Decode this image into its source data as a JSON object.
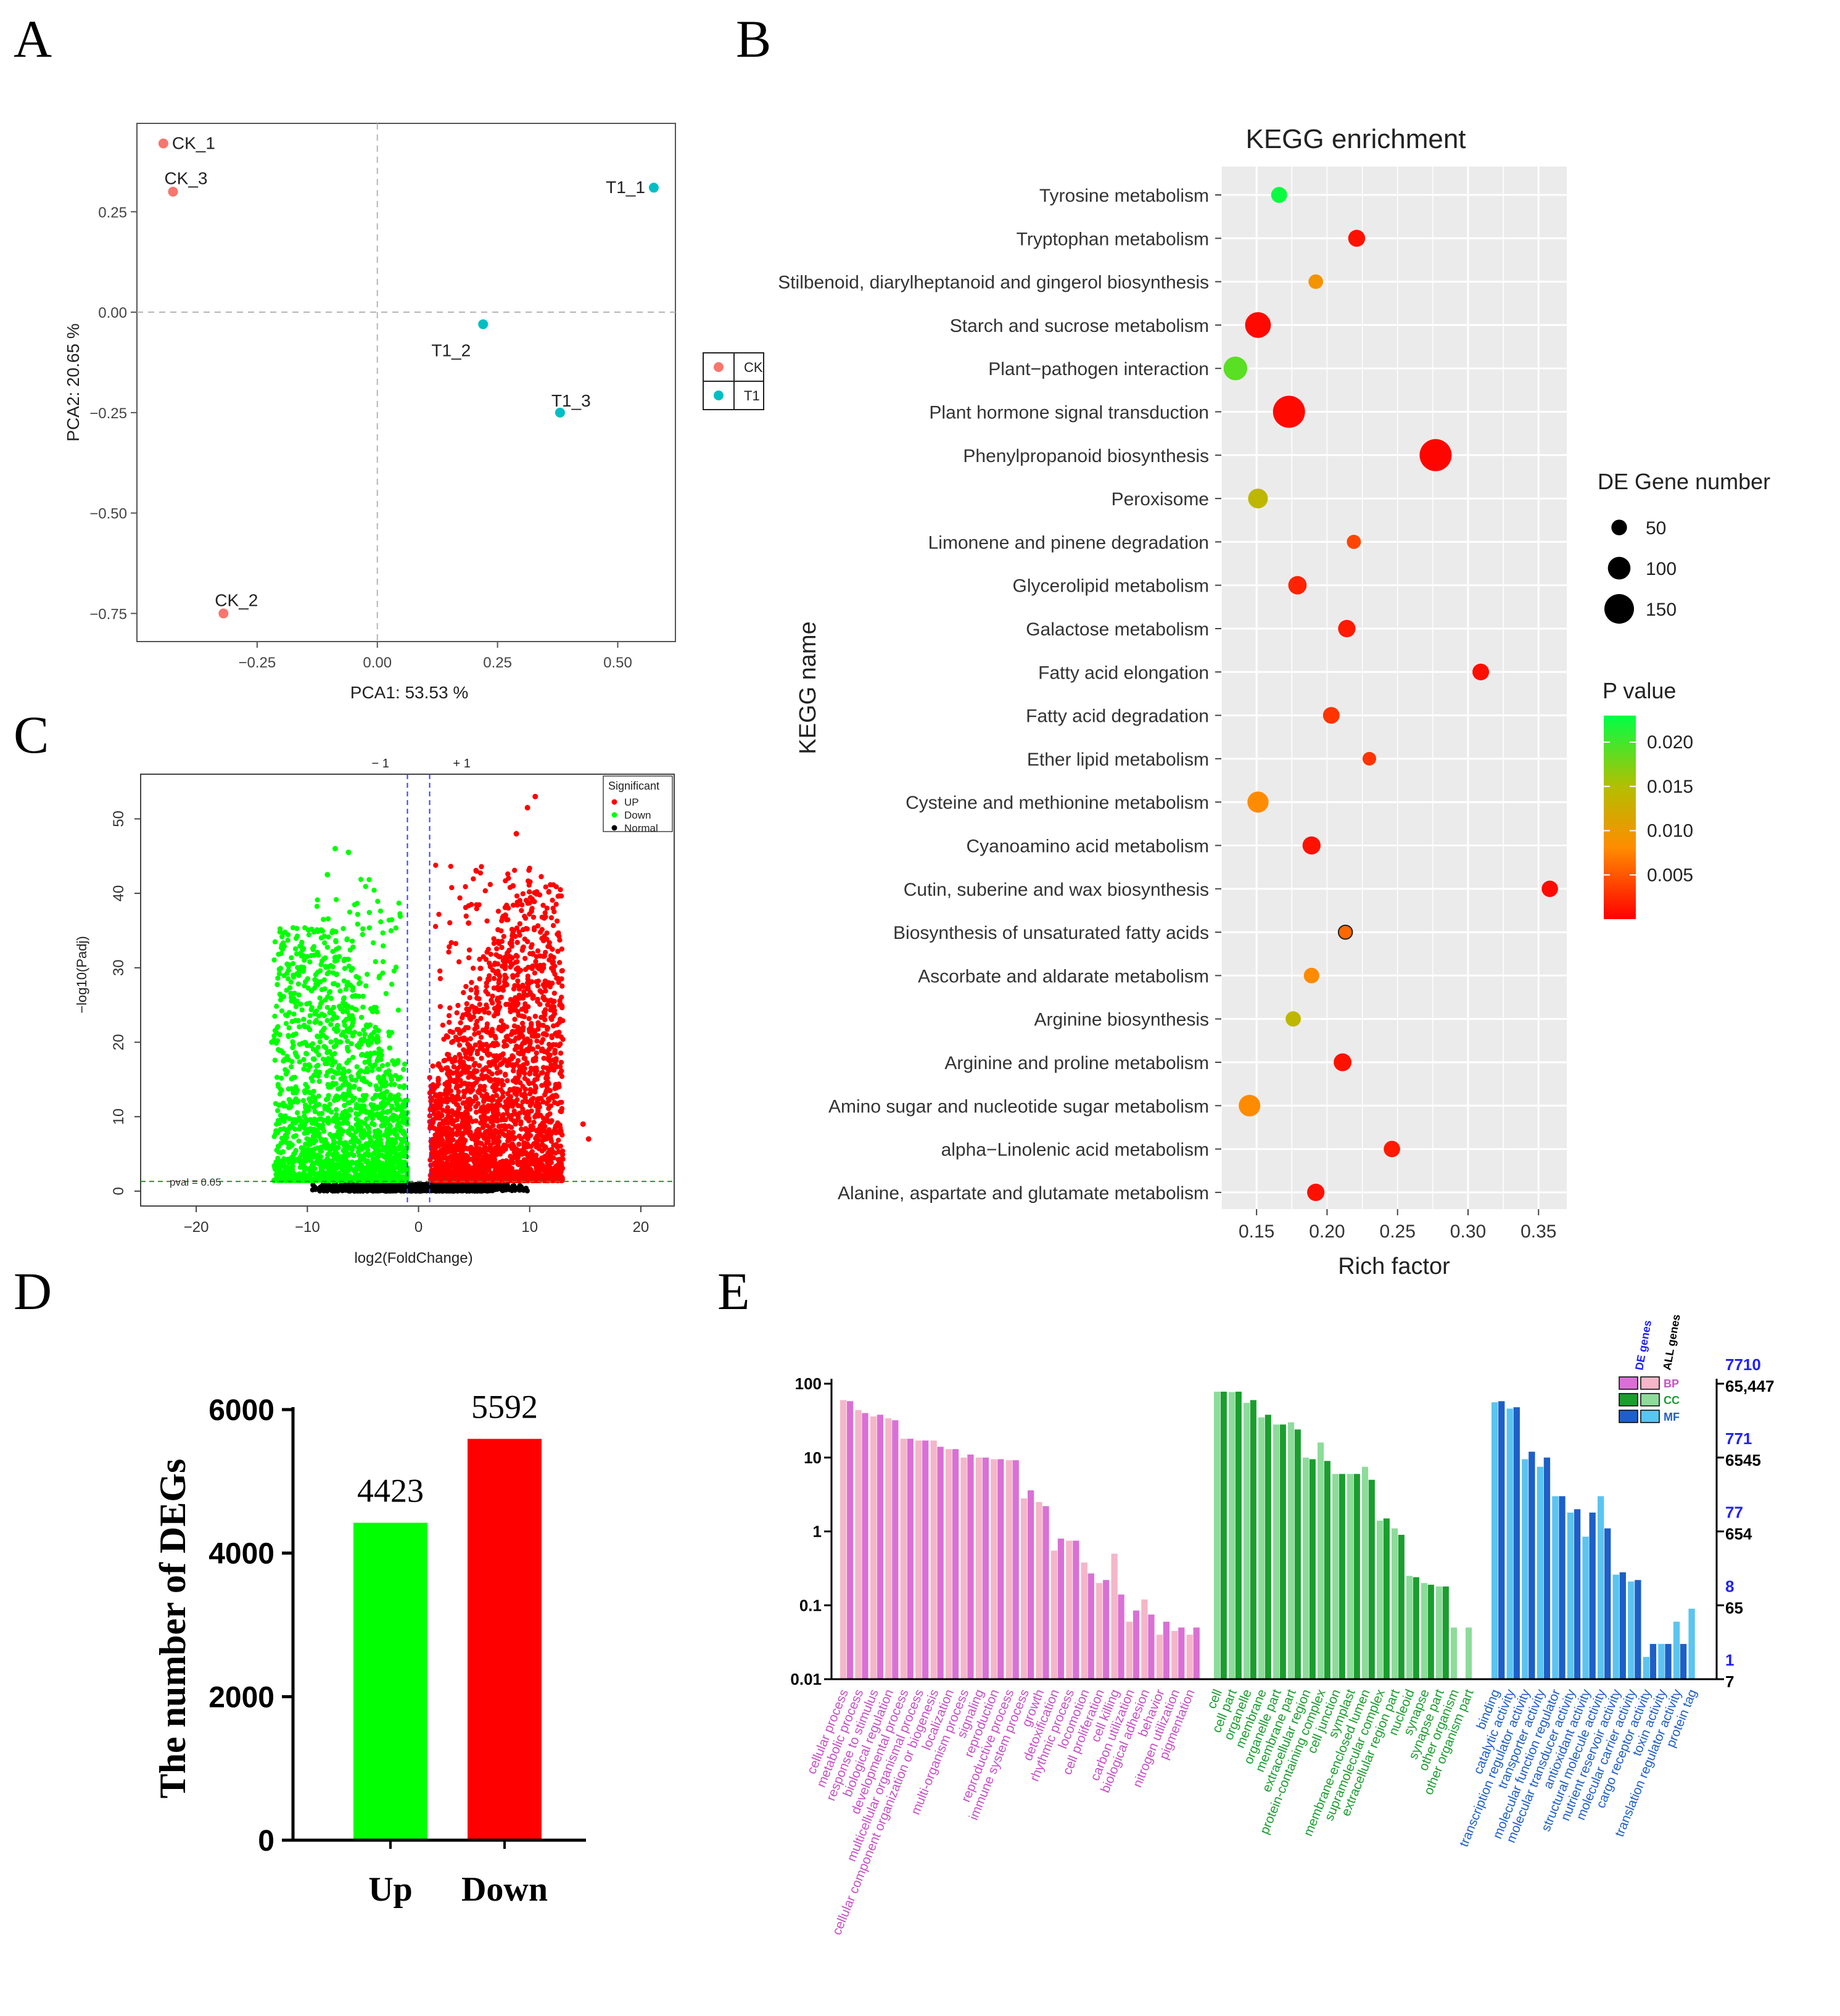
{
  "panels": {
    "A": "A",
    "B": "B",
    "C": "C",
    "D": "D",
    "E": "E"
  },
  "chart_data": [
    {
      "id": "A",
      "type": "scatter",
      "title": "",
      "xlabel": "PCA1: 53.53 %",
      "ylabel": "PCA2: 20.65 %",
      "xlim": [
        -0.5,
        0.62
      ],
      "ylim": [
        -0.82,
        0.47
      ],
      "xticks": [
        -0.25,
        0.0,
        0.25,
        0.5
      ],
      "xtick_labels": [
        "−0.25",
        "0.00",
        "0.25",
        "0.50"
      ],
      "yticks": [
        0.25,
        0.0,
        -0.25,
        -0.5,
        -0.75
      ],
      "ytick_labels": [
        "0.25",
        "0.00",
        "−0.25",
        "−0.50",
        "−0.75"
      ],
      "reference_lines": {
        "x": 0,
        "y": 0
      },
      "points": [
        {
          "label": "CK_1",
          "group": "CK",
          "x": -0.445,
          "y": 0.42
        },
        {
          "label": "CK_3",
          "group": "CK",
          "x": -0.425,
          "y": 0.3
        },
        {
          "label": "T1_1",
          "group": "T1",
          "x": 0.575,
          "y": 0.31
        },
        {
          "label": "T1_2",
          "group": "T1",
          "x": 0.22,
          "y": -0.03
        },
        {
          "label": "T1_3",
          "group": "T1",
          "x": 0.38,
          "y": -0.25
        },
        {
          "label": "CK_2",
          "group": "CK",
          "x": -0.32,
          "y": -0.75
        }
      ],
      "legend": [
        {
          "label": "CK",
          "color": "#F8766D"
        },
        {
          "label": "T1",
          "color": "#00BFC4"
        }
      ]
    },
    {
      "id": "B",
      "type": "scatter",
      "title": "KEGG enrichment",
      "xlabel": "Rich factor",
      "ylabel": "KEGG name",
      "xlim": [
        0.125,
        0.37
      ],
      "xticks": [
        0.15,
        0.2,
        0.25,
        0.3,
        0.35
      ],
      "xtick_labels": [
        "0.15",
        "0.20",
        "0.25",
        "0.30",
        "0.35"
      ],
      "size_legend_title": "DE Gene number",
      "size_legend": [
        50,
        100,
        150
      ],
      "color_legend_title": "P value",
      "color_legend_ticks": [
        0.02,
        0.015,
        0.01,
        0.005
      ],
      "color_legend_tick_labels": [
        "0.020",
        "0.015",
        "0.010",
        "0.005"
      ],
      "color_range": [
        0.0,
        0.023
      ],
      "terms": [
        {
          "name": "Tyrosine metabolism",
          "rich": 0.166,
          "genes": 35,
          "p": 0.0225
        },
        {
          "name": "Tryptophan metabolism",
          "rich": 0.221,
          "genes": 42,
          "p": 0.001
        },
        {
          "name": "Stilbenoid, diarylheptanoid and gingerol biosynthesis",
          "rich": 0.192,
          "genes": 25,
          "p": 0.009
        },
        {
          "name": "Starch and sucrose metabolism",
          "rich": 0.151,
          "genes": 105,
          "p": 0.0005
        },
        {
          "name": "Plant−pathogen interaction",
          "rich": 0.135,
          "genes": 90,
          "p": 0.019
        },
        {
          "name": "Plant hormone signal transduction",
          "rich": 0.173,
          "genes": 150,
          "p": 0.0005
        },
        {
          "name": "Phenylpropanoid biosynthesis",
          "rich": 0.277,
          "genes": 150,
          "p": 0.0003
        },
        {
          "name": "Peroxisome",
          "rich": 0.151,
          "genes": 62,
          "p": 0.014
        },
        {
          "name": "Limonene and pinene degradation",
          "rich": 0.219,
          "genes": 22,
          "p": 0.004
        },
        {
          "name": "Glycerolipid metabolism",
          "rich": 0.179,
          "genes": 52,
          "p": 0.002
        },
        {
          "name": "Galactose metabolism",
          "rich": 0.214,
          "genes": 45,
          "p": 0.0015
        },
        {
          "name": "Fatty acid elongation",
          "rich": 0.309,
          "genes": 40,
          "p": 0.0008
        },
        {
          "name": "Fatty acid degradation",
          "rich": 0.203,
          "genes": 40,
          "p": 0.003
        },
        {
          "name": "Ether lipid metabolism",
          "rich": 0.23,
          "genes": 18,
          "p": 0.003
        },
        {
          "name": "Cysteine and methionine metabolism",
          "rich": 0.151,
          "genes": 72,
          "p": 0.008
        },
        {
          "name": "Cyanoamino acid metabolism",
          "rich": 0.189,
          "genes": 50,
          "p": 0.001
        },
        {
          "name": "Cutin, suberine and wax biosynthesis",
          "rich": 0.358,
          "genes": 38,
          "p": 0.0006
        },
        {
          "name": "Biosynthesis of unsaturated fatty acids",
          "rich": 0.213,
          "genes": 20,
          "p": 0.006
        },
        {
          "name": "Ascorbate and aldarate metabolism",
          "rich": 0.189,
          "genes": 32,
          "p": 0.008
        },
        {
          "name": "Arginine biosynthesis",
          "rich": 0.176,
          "genes": 30,
          "p": 0.014
        },
        {
          "name": "Arginine and proline metabolism",
          "rich": 0.211,
          "genes": 48,
          "p": 0.001
        },
        {
          "name": "Amino sugar and nucleotide sugar metabolism",
          "rich": 0.145,
          "genes": 75,
          "p": 0.008
        },
        {
          "name": "alpha−Linolenic acid metabolism",
          "rich": 0.246,
          "genes": 38,
          "p": 0.0015
        },
        {
          "name": "Alanine, aspartate and glutamate metabolism",
          "rich": 0.192,
          "genes": 45,
          "p": 0.001
        }
      ]
    },
    {
      "id": "C",
      "type": "scatter",
      "title": "",
      "xlabel": "log2(FoldChange)",
      "ylabel": "−log10(Padj)",
      "xlim": [
        -25,
        23
      ],
      "ylim": [
        -2,
        56
      ],
      "xticks": [
        -20,
        -10,
        0,
        10,
        20
      ],
      "xtick_labels": [
        "−20",
        "−10",
        "0",
        "10",
        "20"
      ],
      "yticks": [
        0,
        10,
        20,
        30,
        40,
        50
      ],
      "ytick_labels": [
        "0",
        "10",
        "20",
        "30",
        "40",
        "50"
      ],
      "threshold_labels": [
        "− 1",
        "+ 1"
      ],
      "vlines": [
        -1,
        1
      ],
      "hline": 1.3,
      "hline_label": "pval = 0.05",
      "legend_title": "Significant",
      "legend": [
        {
          "label": "UP",
          "color": "#FF0000"
        },
        {
          "label": "Down",
          "color": "#00FF00"
        },
        {
          "label": "Normal",
          "color": "#000000"
        }
      ],
      "highlight_points": [
        {
          "group": "UP",
          "x": 10.5,
          "y": 53
        },
        {
          "group": "UP",
          "x": 9.8,
          "y": 51.5
        },
        {
          "group": "UP",
          "x": 8.8,
          "y": 48
        },
        {
          "group": "UP",
          "x": 5.2,
          "y": 43
        },
        {
          "group": "UP",
          "x": 8.5,
          "y": 41
        },
        {
          "group": "UP",
          "x": 4.5,
          "y": 36
        },
        {
          "group": "UP",
          "x": 14.8,
          "y": 9
        },
        {
          "group": "UP",
          "x": 15.3,
          "y": 7
        },
        {
          "group": "DOWN",
          "x": -7.5,
          "y": 46
        },
        {
          "group": "DOWN",
          "x": -6.3,
          "y": 45.5
        },
        {
          "group": "DOWN",
          "x": -8.2,
          "y": 42.5
        },
        {
          "group": "DOWN",
          "x": -13.2,
          "y": 20
        },
        {
          "group": "DOWN",
          "x": -11.2,
          "y": 5
        }
      ]
    },
    {
      "id": "D",
      "type": "bar",
      "title": "",
      "xlabel": "",
      "ylabel": "The number of DEGs",
      "categories": [
        "Up",
        "Down"
      ],
      "values": [
        4423,
        5592
      ],
      "value_labels": [
        "4423",
        "5592"
      ],
      "colors": [
        "#00FF00",
        "#FF0000"
      ],
      "ylim": [
        0,
        6000
      ],
      "yticks": [
        0,
        2000,
        4000,
        6000
      ],
      "ytick_labels": [
        "0",
        "2000",
        "4000",
        "6000"
      ]
    },
    {
      "id": "E",
      "type": "bar",
      "title": "",
      "xlabel": "",
      "ylabel": "",
      "scale": "log",
      "ylim": [
        0.01,
        100
      ],
      "left_ticks": [
        100,
        10,
        1,
        0.1,
        0.01
      ],
      "left_tick_labels": [
        "100",
        "10",
        "1",
        "0.1",
        "0.01"
      ],
      "right_ticks_de": [
        "7710",
        "771",
        "77",
        "8",
        "1"
      ],
      "right_ticks_all": [
        "65,447",
        "6545",
        "654",
        "65",
        "7"
      ],
      "legend_headers": [
        "DE genes",
        "ALL genes"
      ],
      "legend": [
        {
          "label": "BP",
          "de_color": "#DA70D6",
          "all_color": "#F4B6C8"
        },
        {
          "label": "CC",
          "de_color": "#1A9E2E",
          "all_color": "#8DDC9A"
        },
        {
          "label": "MF",
          "de_color": "#1E5FC8",
          "all_color": "#5BC4F0"
        }
      ],
      "categories": [
        {
          "name": "cellular process",
          "group": "BP",
          "de": 58,
          "all": 60
        },
        {
          "name": "metabolic process",
          "group": "BP",
          "de": 40,
          "all": 44
        },
        {
          "name": "response to stimulus",
          "group": "BP",
          "de": 38,
          "all": 36
        },
        {
          "name": "biological regulation",
          "group": "BP",
          "de": 32,
          "all": 34
        },
        {
          "name": "developmental process",
          "group": "BP",
          "de": 18,
          "all": 18
        },
        {
          "name": "multicellular organismal process",
          "group": "BP",
          "de": 17,
          "all": 17
        },
        {
          "name": "cellular component organization or biogenesis",
          "group": "BP",
          "de": 14,
          "all": 17
        },
        {
          "name": "localization",
          "group": "BP",
          "de": 13,
          "all": 13
        },
        {
          "name": "multi-organism process",
          "group": "BP",
          "de": 11,
          "all": 10
        },
        {
          "name": "signaling",
          "group": "BP",
          "de": 10,
          "all": 10
        },
        {
          "name": "reproduction",
          "group": "BP",
          "de": 9.5,
          "all": 9.5
        },
        {
          "name": "reproductive process",
          "group": "BP",
          "de": 9.2,
          "all": 9.2
        },
        {
          "name": "immune system process",
          "group": "BP",
          "de": 3.6,
          "all": 2.8
        },
        {
          "name": "growth",
          "group": "BP",
          "de": 2.2,
          "all": 2.5
        },
        {
          "name": "detoxification",
          "group": "BP",
          "de": 0.8,
          "all": 0.55
        },
        {
          "name": "rhythmic process",
          "group": "BP",
          "de": 0.75,
          "all": 0.75
        },
        {
          "name": "locomotion",
          "group": "BP",
          "de": 0.27,
          "all": 0.38
        },
        {
          "name": "cell proliferation",
          "group": "BP",
          "de": 0.22,
          "all": 0.2
        },
        {
          "name": "cell killing",
          "group": "BP",
          "de": 0.14,
          "all": 0.5
        },
        {
          "name": "carbon utilization",
          "group": "BP",
          "de": 0.085,
          "all": 0.06
        },
        {
          "name": "biological adhesion",
          "group": "BP",
          "de": 0.075,
          "all": 0.12
        },
        {
          "name": "behavior",
          "group": "BP",
          "de": 0.06,
          "all": 0.04
        },
        {
          "name": "nitrogen utilization",
          "group": "BP",
          "de": 0.05,
          "all": 0.045
        },
        {
          "name": "pigmentation",
          "group": "BP",
          "de": 0.05,
          "all": 0.04
        },
        {
          "name": "cell",
          "group": "CC",
          "de": 78,
          "all": 78
        },
        {
          "name": "cell part",
          "group": "CC",
          "de": 78,
          "all": 77
        },
        {
          "name": "organelle",
          "group": "CC",
          "de": 60,
          "all": 55
        },
        {
          "name": "membrane",
          "group": "CC",
          "de": 38,
          "all": 35
        },
        {
          "name": "organelle part",
          "group": "CC",
          "de": 28,
          "all": 28
        },
        {
          "name": "membrane part",
          "group": "CC",
          "de": 24,
          "all": 30
        },
        {
          "name": "extracellular region",
          "group": "CC",
          "de": 9.5,
          "all": 10
        },
        {
          "name": "protein-containing complex",
          "group": "CC",
          "de": 9,
          "all": 16
        },
        {
          "name": "cell junction",
          "group": "CC",
          "de": 6,
          "all": 6
        },
        {
          "name": "symplast",
          "group": "CC",
          "de": 6,
          "all": 6
        },
        {
          "name": "membrane-enclosed lumen",
          "group": "CC",
          "de": 5,
          "all": 7.5
        },
        {
          "name": "supramolecular complex",
          "group": "CC",
          "de": 1.5,
          "all": 1.4
        },
        {
          "name": "extracellular region part",
          "group": "CC",
          "de": 0.9,
          "all": 1.1
        },
        {
          "name": "nucleoid",
          "group": "CC",
          "de": 0.24,
          "all": 0.25
        },
        {
          "name": "synapse",
          "group": "CC",
          "de": 0.19,
          "all": 0.2
        },
        {
          "name": "synapse part",
          "group": "CC",
          "de": 0.18,
          "all": 0.18
        },
        {
          "name": "other organism",
          "group": "CC",
          "de": 0,
          "all": 0.05
        },
        {
          "name": "other organism part",
          "group": "CC",
          "de": 0,
          "all": 0.05
        },
        {
          "name": "binding",
          "group": "MF",
          "de": 58,
          "all": 56
        },
        {
          "name": "catalytic activity",
          "group": "MF",
          "de": 48,
          "all": 46
        },
        {
          "name": "transcription regulator activity",
          "group": "MF",
          "de": 12,
          "all": 9.5
        },
        {
          "name": "transporter activity",
          "group": "MF",
          "de": 10,
          "all": 7.5
        },
        {
          "name": "molecular function regulator",
          "group": "MF",
          "de": 3,
          "all": 3
        },
        {
          "name": "molecular transducer activity",
          "group": "MF",
          "de": 2,
          "all": 1.8
        },
        {
          "name": "antioxidant activity",
          "group": "MF",
          "de": 1.8,
          "all": 0.85
        },
        {
          "name": "structural molecule activity",
          "group": "MF",
          "de": 1.1,
          "all": 3
        },
        {
          "name": "nutrient reservoir activity",
          "group": "MF",
          "de": 0.28,
          "all": 0.26
        },
        {
          "name": "molecular carrier activity",
          "group": "MF",
          "de": 0.22,
          "all": 0.21
        },
        {
          "name": "cargo receptor activity",
          "group": "MF",
          "de": 0.03,
          "all": 0.02
        },
        {
          "name": "toxin activity",
          "group": "MF",
          "de": 0.03,
          "all": 0.03
        },
        {
          "name": "translation regulator activity",
          "group": "MF",
          "de": 0.03,
          "all": 0.06
        },
        {
          "name": "protein tag",
          "group": "MF",
          "de": 0,
          "all": 0.09
        }
      ]
    }
  ]
}
